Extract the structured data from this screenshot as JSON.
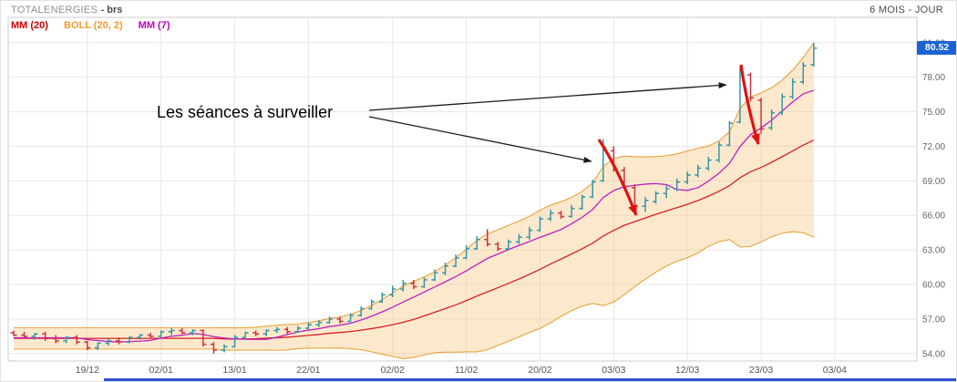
{
  "header": {
    "title": "TOTALENERGIES",
    "title_suffix": "- brs",
    "period": "6 MOIS - JOUR"
  },
  "legend": [
    {
      "label": "MM (20)",
      "color": "#cc0000"
    },
    {
      "label": "BOLL (20, 2)",
      "color": "#f09b2e"
    },
    {
      "label": "MM (7)",
      "color": "#c000c0"
    }
  ],
  "annotation": {
    "text": "Les séances à surveiller"
  },
  "price_badge": {
    "value": "80.52",
    "color": "#1b63d2"
  },
  "range_slider": {
    "color": "#2d4fd0"
  },
  "chart_data": {
    "type": "ohlc-bar",
    "title": "TOTALENERGIES - brs",
    "timeframe": "6 MOIS - JOUR",
    "ylabel": "",
    "xlabel": "",
    "ylim": [
      53.35,
      83.2
    ],
    "last_price": 80.52,
    "grid": true,
    "yticks": [
      {
        "value": 81,
        "label": "81.00"
      },
      {
        "value": 78,
        "label": "78.00"
      },
      {
        "value": 75,
        "label": "75.00"
      },
      {
        "value": 72,
        "label": "72.00"
      },
      {
        "value": 69,
        "label": "69.00"
      },
      {
        "value": 66,
        "label": "66.00"
      },
      {
        "value": 63,
        "label": "63.00"
      },
      {
        "value": 60,
        "label": "60.00"
      },
      {
        "value": 57,
        "label": "57.00"
      },
      {
        "value": 54,
        "label": "54.00"
      }
    ],
    "xticks": [
      {
        "index": 7,
        "label": "19/12"
      },
      {
        "index": 14,
        "label": "02/01"
      },
      {
        "index": 21,
        "label": "13/01"
      },
      {
        "index": 28,
        "label": "22/01"
      },
      {
        "index": 36,
        "label": "02/02"
      },
      {
        "index": 43,
        "label": "11/02"
      },
      {
        "index": 50,
        "label": "20/02"
      },
      {
        "index": 57,
        "label": "03/03"
      },
      {
        "index": 64,
        "label": "12/03"
      },
      {
        "index": 71,
        "label": "23/03"
      },
      {
        "index": 78,
        "label": "03/04"
      }
    ],
    "indicators": [
      {
        "name": "MM (20)",
        "type": "sma",
        "period": 20,
        "color": "#d42222"
      },
      {
        "name": "BOLL (20, 2)",
        "type": "bollinger",
        "period": 20,
        "mult": 2,
        "color": "#e8a33d",
        "fill": "rgba(246,197,124,0.38)"
      },
      {
        "name": "MM (7)",
        "type": "sma",
        "period": 7,
        "color": "#bf1fbf"
      }
    ],
    "colors": {
      "up": "#3596a6",
      "down": "#cc3340",
      "grid": "#e7e7e7",
      "axis": "#cccccc",
      "tick_text": "#666666",
      "arrow_black": "#1a1a1a",
      "arrow_red": "#e01111"
    },
    "candles": [
      [
        55.8,
        56.0,
        55.5,
        55.6
      ],
      [
        55.6,
        55.9,
        55.3,
        55.5
      ],
      [
        55.5,
        55.8,
        55.2,
        55.7
      ],
      [
        55.7,
        55.9,
        55.1,
        55.3
      ],
      [
        55.3,
        55.6,
        54.9,
        55.1
      ],
      [
        55.1,
        55.5,
        54.9,
        55.4
      ],
      [
        55.4,
        55.6,
        54.8,
        55.0
      ],
      [
        55.0,
        55.1,
        54.3,
        54.5
      ],
      [
        54.5,
        55.0,
        54.3,
        54.9
      ],
      [
        54.9,
        55.3,
        54.7,
        55.1
      ],
      [
        55.1,
        55.4,
        54.8,
        55.0
      ],
      [
        55.0,
        55.5,
        54.9,
        55.4
      ],
      [
        55.4,
        55.7,
        55.2,
        55.6
      ],
      [
        55.6,
        55.8,
        55.3,
        55.5
      ],
      [
        55.5,
        56.0,
        55.4,
        55.9
      ],
      [
        55.9,
        56.2,
        55.6,
        56.0
      ],
      [
        56.0,
        56.2,
        55.7,
        55.8
      ],
      [
        55.8,
        56.1,
        55.6,
        56.0
      ],
      [
        56.0,
        56.1,
        54.6,
        54.8
      ],
      [
        54.8,
        55.0,
        54.0,
        54.3
      ],
      [
        54.3,
        54.8,
        54.1,
        54.6
      ],
      [
        54.6,
        55.6,
        54.5,
        55.4
      ],
      [
        55.4,
        55.9,
        55.2,
        55.8
      ],
      [
        55.8,
        56.0,
        55.5,
        55.7
      ],
      [
        55.7,
        56.1,
        55.5,
        56.0
      ],
      [
        56.0,
        56.3,
        55.8,
        56.1
      ],
      [
        56.1,
        56.3,
        55.7,
        55.9
      ],
      [
        55.9,
        56.4,
        55.8,
        56.2
      ],
      [
        56.2,
        56.7,
        56.1,
        56.5
      ],
      [
        56.5,
        56.9,
        56.3,
        56.7
      ],
      [
        56.7,
        57.2,
        56.6,
        57.0
      ],
      [
        57.0,
        57.2,
        56.6,
        56.8
      ],
      [
        56.8,
        57.5,
        56.7,
        57.3
      ],
      [
        57.3,
        58.1,
        57.2,
        57.9
      ],
      [
        57.9,
        58.7,
        57.8,
        58.5
      ],
      [
        58.5,
        59.3,
        58.4,
        59.1
      ],
      [
        59.1,
        59.9,
        58.9,
        59.6
      ],
      [
        59.6,
        60.4,
        59.4,
        60.1
      ],
      [
        60.1,
        60.4,
        59.6,
        59.8
      ],
      [
        59.8,
        60.6,
        59.7,
        60.4
      ],
      [
        60.4,
        61.3,
        60.3,
        61.0
      ],
      [
        61.0,
        61.9,
        60.8,
        61.6
      ],
      [
        61.6,
        62.6,
        61.5,
        62.3
      ],
      [
        62.3,
        63.4,
        62.2,
        63.1
      ],
      [
        63.1,
        64.2,
        63.0,
        63.9
      ],
      [
        63.9,
        64.8,
        63.3,
        63.5
      ],
      [
        63.5,
        63.7,
        62.9,
        63.1
      ],
      [
        63.1,
        63.9,
        63.0,
        63.7
      ],
      [
        63.7,
        64.4,
        63.5,
        64.1
      ],
      [
        64.1,
        65.0,
        63.9,
        64.7
      ],
      [
        64.7,
        65.9,
        64.6,
        65.7
      ],
      [
        65.7,
        66.5,
        65.5,
        66.2
      ],
      [
        66.2,
        66.4,
        65.7,
        65.9
      ],
      [
        65.9,
        66.9,
        65.8,
        66.6
      ],
      [
        66.6,
        67.8,
        66.5,
        67.6
      ],
      [
        67.6,
        69.1,
        67.5,
        68.9
      ],
      [
        69.0,
        72.6,
        68.9,
        71.9
      ],
      [
        71.6,
        72.0,
        69.8,
        70.0
      ],
      [
        69.9,
        70.2,
        68.3,
        68.5
      ],
      [
        68.4,
        68.7,
        66.5,
        66.8
      ],
      [
        66.8,
        67.6,
        66.3,
        67.3
      ],
      [
        67.2,
        68.1,
        67.0,
        67.9
      ],
      [
        67.9,
        68.6,
        67.5,
        68.3
      ],
      [
        68.3,
        69.2,
        68.1,
        68.9
      ],
      [
        68.9,
        69.8,
        68.7,
        69.5
      ],
      [
        69.5,
        70.4,
        69.3,
        70.1
      ],
      [
        70.1,
        71.1,
        69.9,
        70.8
      ],
      [
        70.8,
        72.4,
        70.6,
        72.1
      ],
      [
        72.1,
        74.2,
        72.0,
        74.0
      ],
      [
        74.1,
        78.9,
        74.0,
        78.4
      ],
      [
        78.2,
        78.4,
        75.9,
        76.2
      ],
      [
        76.0,
        76.2,
        73.1,
        73.5
      ],
      [
        73.6,
        75.2,
        73.4,
        74.9
      ],
      [
        74.9,
        76.6,
        74.7,
        76.3
      ],
      [
        76.3,
        77.9,
        76.1,
        77.6
      ],
      [
        77.6,
        79.3,
        77.4,
        79.0
      ],
      [
        79.1,
        81.0,
        78.9,
        80.52
      ]
    ]
  }
}
